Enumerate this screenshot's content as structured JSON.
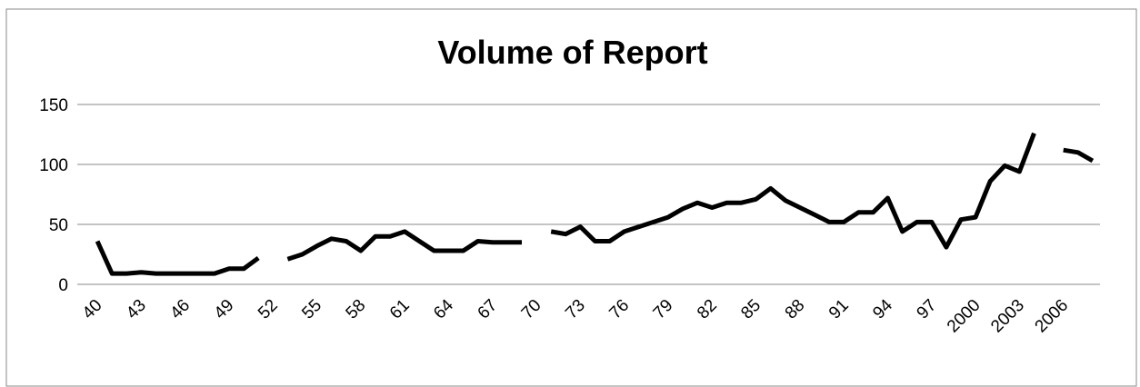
{
  "chart_data": {
    "type": "line",
    "title": "Volume of Report",
    "categories": [
      "40",
      null,
      null,
      "43",
      null,
      null,
      "46",
      null,
      null,
      "49",
      null,
      null,
      "52",
      null,
      null,
      "55",
      null,
      null,
      "58",
      null,
      null,
      "61",
      null,
      null,
      "64",
      null,
      null,
      "67",
      null,
      null,
      "70",
      null,
      null,
      "73",
      null,
      null,
      "76",
      null,
      null,
      "79",
      null,
      null,
      "82",
      null,
      null,
      "85",
      null,
      null,
      "88",
      null,
      null,
      "91",
      null,
      null,
      "94",
      null,
      null,
      "97",
      null,
      null,
      "2000",
      null,
      null,
      "2003",
      null,
      null,
      "2006",
      null,
      null
    ],
    "values": [
      36,
      9,
      9,
      10,
      9,
      9,
      9,
      9,
      9,
      13,
      13,
      22,
      null,
      21,
      25,
      32,
      38,
      36,
      28,
      40,
      40,
      44,
      36,
      28,
      28,
      28,
      36,
      35,
      35,
      35,
      null,
      44,
      42,
      48,
      36,
      36,
      44,
      48,
      52,
      56,
      63,
      68,
      64,
      68,
      68,
      71,
      80,
      70,
      64,
      58,
      52,
      52,
      60,
      60,
      72,
      44,
      52,
      52,
      31,
      54,
      56,
      86,
      99,
      94,
      126,
      null,
      112,
      110,
      103
    ],
    "color": "#000000",
    "ylim": [
      0,
      150
    ],
    "yticks": [
      0,
      50,
      100,
      150
    ],
    "grid": true
  }
}
